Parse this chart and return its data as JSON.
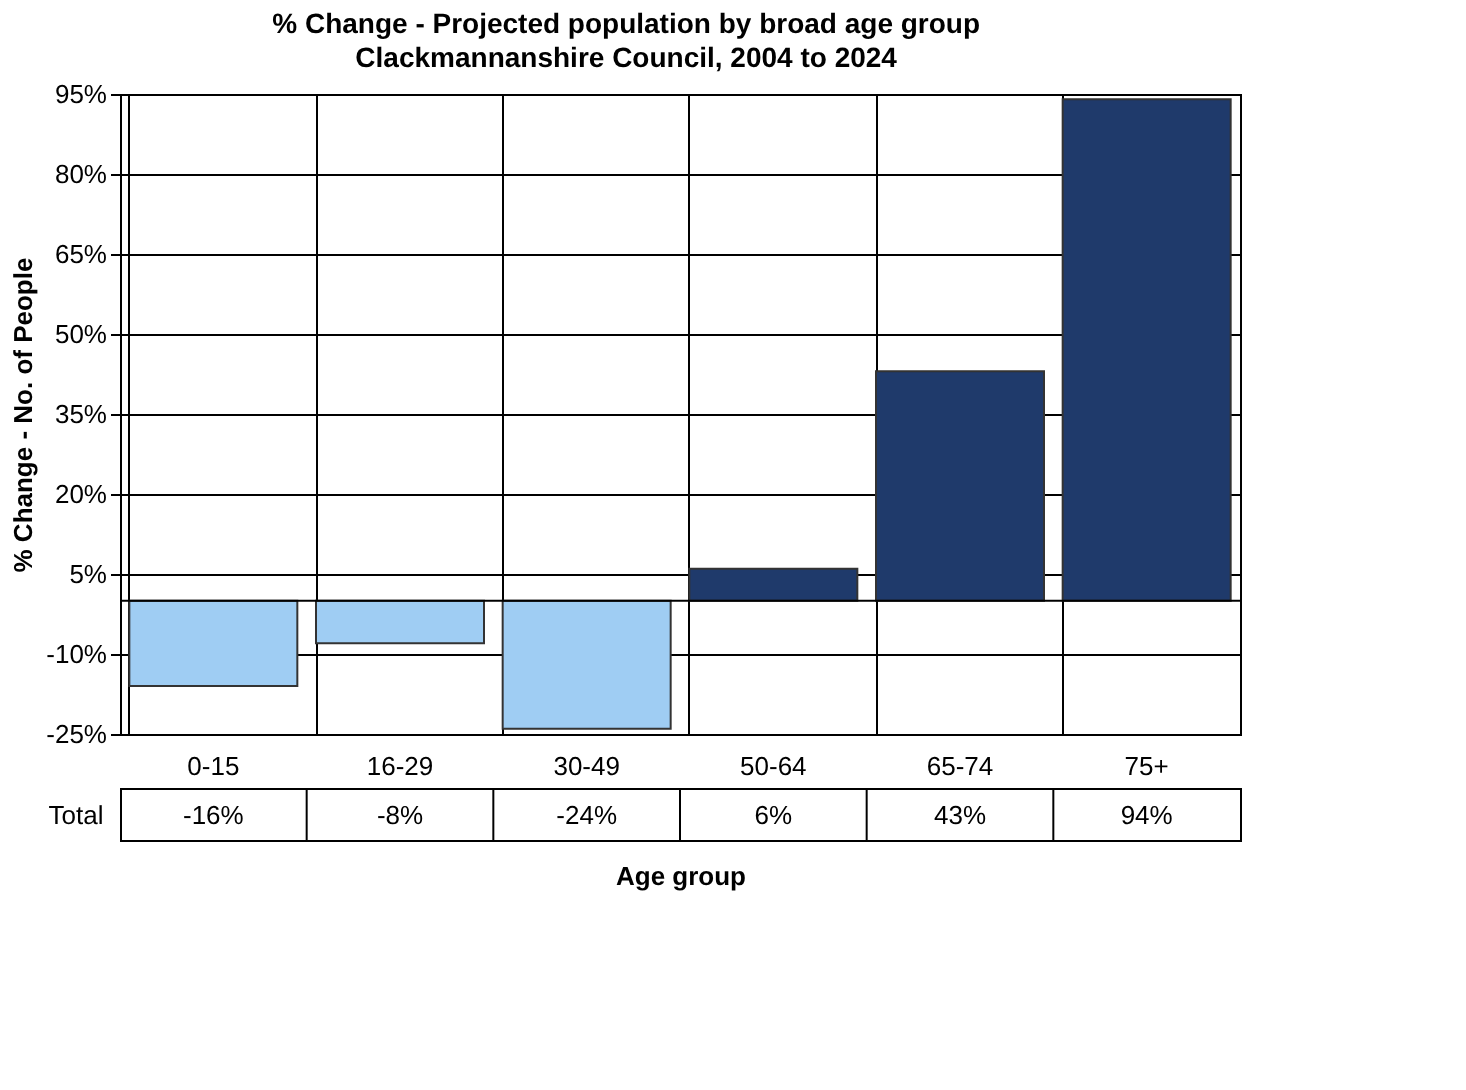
{
  "chart_data": {
    "type": "bar",
    "title": "% Change - Projected population by broad age group",
    "subtitle": "Clackmannanshire Council, 2004 to 2024",
    "xlabel": "Age group",
    "ylabel": "% Change - No. of People",
    "categories": [
      "0-15",
      "16-29",
      "30-49",
      "50-64",
      "65-74",
      "75+"
    ],
    "values": [
      -16,
      -8,
      -24,
      6,
      43,
      94
    ],
    "value_labels": [
      "-16%",
      "-8%",
      "-24%",
      "6%",
      "43%",
      "94%"
    ],
    "colors": [
      "#9fcdf3",
      "#9fcdf3",
      "#9fcdf3",
      "#1f3a6b",
      "#1f3a6b",
      "#1f3a6b"
    ],
    "ylim": [
      -25,
      95
    ],
    "yticks": [
      {
        "value": -25,
        "label": "-25%"
      },
      {
        "value": -10,
        "label": "-10%"
      },
      {
        "value": 5,
        "label": "5%"
      },
      {
        "value": 20,
        "label": "20%"
      },
      {
        "value": 35,
        "label": "35%"
      },
      {
        "value": 50,
        "label": "50%"
      },
      {
        "value": 65,
        "label": "65%"
      },
      {
        "value": 80,
        "label": "80%"
      },
      {
        "value": 95,
        "label": "95%"
      }
    ],
    "annotations": [
      "Total"
    ],
    "grid": true
  }
}
